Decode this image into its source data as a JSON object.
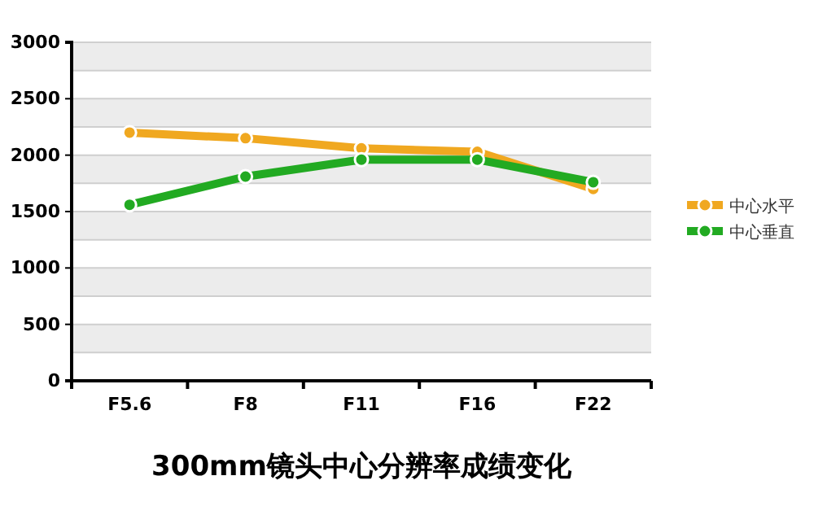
{
  "chart_data": {
    "type": "line",
    "title": "300mm镜头中心分辨率成绩变化",
    "categories": [
      "F5.6",
      "F8",
      "F11",
      "F16",
      "F22"
    ],
    "series": [
      {
        "name": "中心水平",
        "color": "#f0a820",
        "values": [
          2200,
          2150,
          2060,
          2030,
          1700
        ]
      },
      {
        "name": "中心垂直",
        "color": "#22aa22",
        "values": [
          1560,
          1810,
          1960,
          1960,
          1760
        ]
      }
    ],
    "ylim": [
      0,
      3000
    ],
    "yticks": [
      0,
      {
        "value": 250,
        "label": null
      },
      500,
      {
        "value": 750,
        "label": null
      },
      1000,
      {
        "value": 1250,
        "label": null
      },
      1500,
      {
        "value": 1750,
        "label": null
      },
      2000,
      {
        "value": 2250,
        "label": null
      },
      2500,
      {
        "value": 2750,
        "label": null
      },
      3000
    ],
    "grid": true,
    "legend": "right",
    "marker": "circle",
    "line_style": "solid"
  }
}
